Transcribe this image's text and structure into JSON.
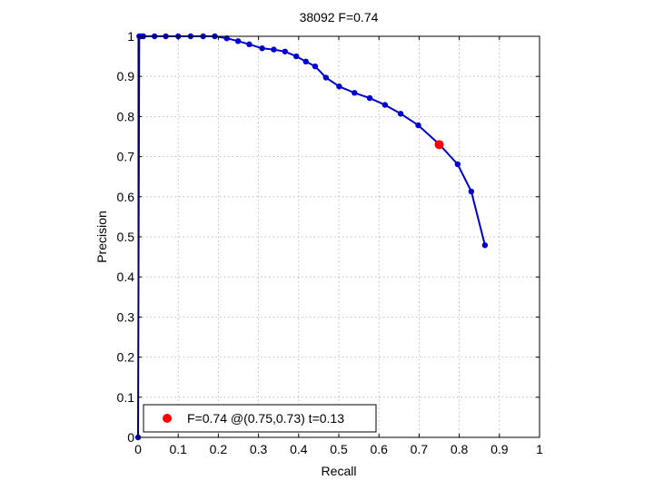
{
  "chart_data": {
    "type": "line",
    "title": "38092 F=0.74",
    "xlabel": "Recall",
    "ylabel": "Precision",
    "xlim": [
      0,
      1
    ],
    "ylim": [
      0,
      1
    ],
    "grid": true,
    "x_ticks": [
      "0",
      "0.1",
      "0.2",
      "0.3",
      "0.4",
      "0.5",
      "0.6",
      "0.7",
      "0.8",
      "0.9",
      "1"
    ],
    "y_ticks": [
      "0",
      "0.1",
      "0.2",
      "0.3",
      "0.4",
      "0.5",
      "0.6",
      "0.7",
      "0.8",
      "0.9",
      "1"
    ],
    "series": [
      {
        "color": "#0000cc",
        "marker": "dot",
        "x": [
          0.0,
          0.003,
          0.007,
          0.013,
          0.041,
          0.069,
          0.1,
          0.131,
          0.162,
          0.191,
          0.221,
          0.249,
          0.277,
          0.309,
          0.338,
          0.366,
          0.394,
          0.418,
          0.441,
          0.468,
          0.501,
          0.539,
          0.577,
          0.615,
          0.654,
          0.698,
          0.751,
          0.796,
          0.83,
          0.864
        ],
        "y": [
          0.0,
          1.0,
          1.0,
          1.0,
          1.0,
          1.0,
          1.0,
          1.0,
          1.0,
          1.0,
          0.995,
          0.988,
          0.98,
          0.97,
          0.967,
          0.962,
          0.95,
          0.937,
          0.925,
          0.897,
          0.875,
          0.859,
          0.846,
          0.829,
          0.807,
          0.778,
          0.73,
          0.681,
          0.613,
          0.479
        ]
      }
    ],
    "highlight_point": {
      "x": 0.75,
      "y": 0.73,
      "color": "#ff0000"
    },
    "legend": {
      "position": "bottom-left",
      "text": "F=0.74 @(0.75,0.73) t=0.13"
    }
  }
}
